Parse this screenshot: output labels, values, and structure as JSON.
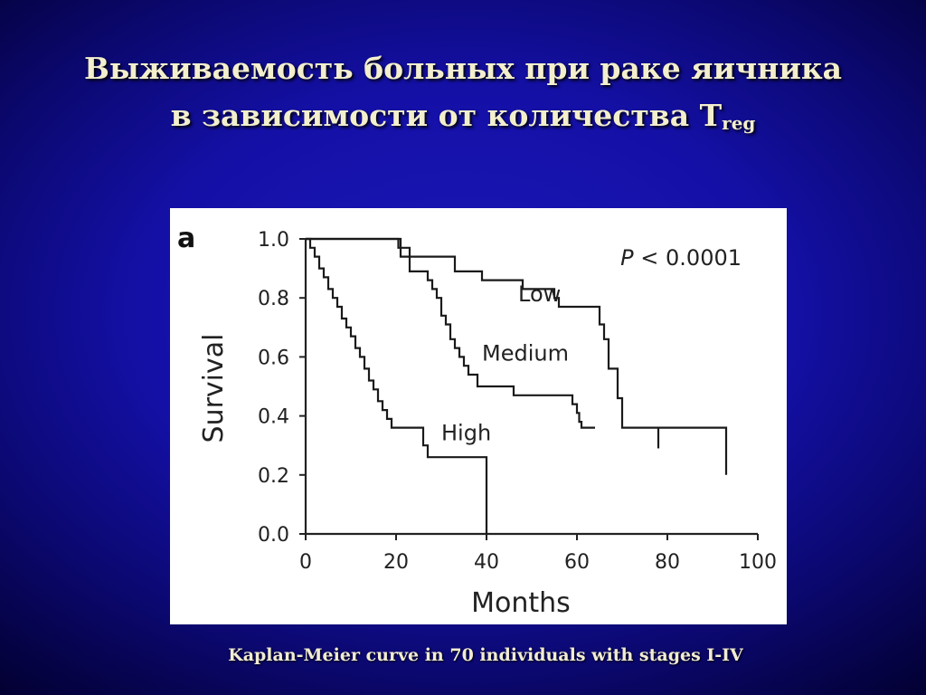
{
  "slide": {
    "title_line1": "Выживаемость больных при раке яичника",
    "title_line2_text": "в зависимости от количества T",
    "title_line2_sub": "reg",
    "caption": "Kaplan-Meier curve in 70  individuals with stages I-IV"
  },
  "chart_data": {
    "type": "line",
    "step": true,
    "panel_label": "a",
    "xlabel": "Months",
    "ylabel": "Survival",
    "xlim": [
      0,
      100
    ],
    "ylim": [
      0,
      1.0
    ],
    "x_ticks": [
      "0",
      "20",
      "40",
      "60",
      "80",
      "100"
    ],
    "y_ticks": [
      "0.0",
      "0.2",
      "0.4",
      "0.6",
      "0.8",
      "1.0"
    ],
    "grid": false,
    "annotation": "P < 0.0001",
    "series": [
      {
        "name": "Low",
        "x": [
          0,
          20,
          21,
          23,
          30,
          33,
          38,
          39,
          44,
          48,
          53,
          55,
          56,
          64,
          65,
          66,
          67,
          69,
          70,
          78,
          93
        ],
        "y": [
          1.0,
          1.0,
          0.97,
          0.94,
          0.94,
          0.89,
          0.89,
          0.86,
          0.86,
          0.83,
          0.83,
          0.8,
          0.77,
          0.77,
          0.71,
          0.66,
          0.56,
          0.46,
          0.36,
          0.36,
          0.2
        ]
      },
      {
        "name": "Medium",
        "x": [
          0,
          20,
          20.5,
          21,
          23,
          26,
          27,
          28,
          29,
          30,
          31,
          32,
          33,
          34,
          35,
          36,
          38,
          41,
          46,
          57,
          59,
          60,
          60.5,
          61,
          62,
          63,
          64
        ],
        "y": [
          1.0,
          1.0,
          0.97,
          0.94,
          0.89,
          0.89,
          0.86,
          0.83,
          0.8,
          0.74,
          0.71,
          0.66,
          0.63,
          0.6,
          0.57,
          0.54,
          0.5,
          0.5,
          0.47,
          0.47,
          0.44,
          0.41,
          0.38,
          0.36,
          0.36,
          0.36,
          0.36
        ]
      },
      {
        "name": "High",
        "x": [
          0,
          1,
          2,
          3,
          4,
          5,
          6,
          7,
          8,
          9,
          10,
          11,
          12,
          13,
          14,
          15,
          16,
          17,
          18,
          19,
          20,
          26,
          27,
          40
        ],
        "y": [
          1.0,
          0.97,
          0.94,
          0.9,
          0.87,
          0.83,
          0.8,
          0.77,
          0.73,
          0.7,
          0.67,
          0.63,
          0.6,
          0.56,
          0.52,
          0.49,
          0.45,
          0.42,
          0.39,
          0.36,
          0.36,
          0.3,
          0.26,
          0.0
        ]
      }
    ]
  }
}
